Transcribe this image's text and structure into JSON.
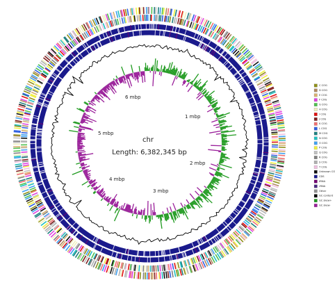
{
  "map": {
    "name": "chr",
    "length_label": "Length: 6,382,345 bp",
    "scale_labels": [
      "1 mbp",
      "2 mbp",
      "3 mbp",
      "4 mbp",
      "5 mbp",
      "6 mbp"
    ],
    "legend": [
      {
        "label": "C COG",
        "color": "#8f8f1a"
      },
      {
        "label": "D COG",
        "color": "#b08a60"
      },
      {
        "label": "E COG",
        "color": "#d8b070"
      },
      {
        "label": "F COG",
        "color": "#e040e0"
      },
      {
        "label": "G COG",
        "color": "#50c050"
      },
      {
        "label": "H COG",
        "color": "#f0f0c0"
      },
      {
        "label": "I COG",
        "color": "#e01010"
      },
      {
        "label": "J COG",
        "color": "#802020"
      },
      {
        "label": "K COG",
        "color": "#f07070"
      },
      {
        "label": "L COG",
        "color": "#3060e0"
      },
      {
        "label": "M COG",
        "color": "#208080"
      },
      {
        "label": "N COG",
        "color": "#20c0c0"
      },
      {
        "label": "O COG",
        "color": "#40a0f0"
      },
      {
        "label": "P COG",
        "color": "#f0f040"
      },
      {
        "label": "Q COG",
        "color": "#c0c0c0"
      },
      {
        "label": "R COG",
        "color": "#808080"
      },
      {
        "label": "S COG",
        "color": "#b0b0b0"
      },
      {
        "label": "T COG",
        "color": "#f0c0e0"
      },
      {
        "label": "Unknown COG",
        "color": "#101010"
      },
      {
        "label": "CDS",
        "color": "#1a1a8c"
      },
      {
        "label": "tRNA",
        "color": "#700070"
      },
      {
        "label": "rRNA",
        "color": "#4a2a80"
      },
      {
        "label": "Other",
        "color": "#909090"
      },
      {
        "label": "GC content",
        "color": "#000000"
      },
      {
        "label": "GC skew+",
        "color": "#1f9a1f"
      },
      {
        "label": "GC skew-",
        "color": "#9a1f9a"
      }
    ]
  }
}
